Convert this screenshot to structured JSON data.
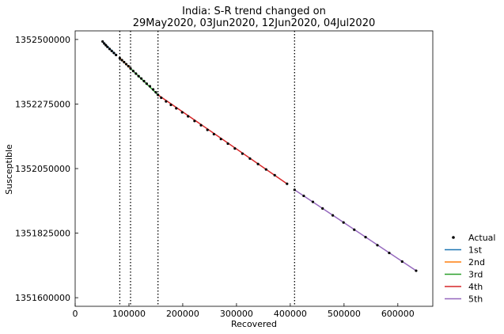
{
  "chart_data": {
    "type": "line",
    "title_line1": "India: S-R trend changed on",
    "title_line2": "29May2020, 03Jun2020, 12Jun2020, 04Jul2020",
    "xlabel": "Recovered",
    "ylabel": "Susceptible",
    "xlim": [
      0,
      665000
    ],
    "ylim": [
      1351570000,
      1352530000
    ],
    "x_ticks": [
      0,
      100000,
      200000,
      300000,
      400000,
      500000,
      600000
    ],
    "x_tick_labels": [
      "0",
      "100000",
      "200000",
      "300000",
      "400000",
      "500000",
      "600000"
    ],
    "y_ticks": [
      1351600000,
      1351825000,
      1352050000,
      1352275000,
      1352500000
    ],
    "y_tick_labels": [
      "1351600000",
      "1351825000",
      "1352050000",
      "1352275000",
      "1352500000"
    ],
    "change_points_x": [
      83000,
      103000,
      154000,
      408000
    ],
    "legend_placement": "lower-right outside",
    "actual": {
      "name": "Actual",
      "color": "#000000",
      "points": [
        [
          51000,
          1352493000
        ],
        [
          54000,
          1352486000
        ],
        [
          57000,
          1352480000
        ],
        [
          60000,
          1352474000
        ],
        [
          64000,
          1352467000
        ],
        [
          68000,
          1352460000
        ],
        [
          72000,
          1352453000
        ],
        [
          76000,
          1352446000
        ],
        [
          83000,
          1352435000
        ],
        [
          87000,
          1352428000
        ],
        [
          91000,
          1352421000
        ],
        [
          95000,
          1352414000
        ],
        [
          99000,
          1352407000
        ],
        [
          103000,
          1352399000
        ],
        [
          108000,
          1352390000
        ],
        [
          113000,
          1352381000
        ],
        [
          118000,
          1352372000
        ],
        [
          123000,
          1352364000
        ],
        [
          128000,
          1352355000
        ],
        [
          133000,
          1352346000
        ],
        [
          139000,
          1352337000
        ],
        [
          145000,
          1352326000
        ],
        [
          150000,
          1352316000
        ],
        [
          154000,
          1352307000
        ],
        [
          160000,
          1352297000
        ],
        [
          169000,
          1352284000
        ],
        [
          178000,
          1352272000
        ],
        [
          188000,
          1352260000
        ],
        [
          199000,
          1352246000
        ],
        [
          210000,
          1352232000
        ],
        [
          222000,
          1352216000
        ],
        [
          234000,
          1352201000
        ],
        [
          246000,
          1352185000
        ],
        [
          258000,
          1352170000
        ],
        [
          271000,
          1352153000
        ],
        [
          284000,
          1352137000
        ],
        [
          297000,
          1352120000
        ],
        [
          311000,
          1352102000
        ],
        [
          325000,
          1352085000
        ],
        [
          340000,
          1352066000
        ],
        [
          355000,
          1352047000
        ],
        [
          371000,
          1352027000
        ],
        [
          394000,
          1351997000
        ],
        [
          408000,
          1351976000
        ],
        [
          425000,
          1351955000
        ],
        [
          442000,
          1351934000
        ],
        [
          460000,
          1351911000
        ],
        [
          479000,
          1351887000
        ],
        [
          499000,
          1351862000
        ],
        [
          519000,
          1351837000
        ],
        [
          540000,
          1351811000
        ],
        [
          562000,
          1351783000
        ],
        [
          584000,
          1351756000
        ],
        [
          608000,
          1351726000
        ],
        [
          634000,
          1351694000
        ]
      ]
    },
    "series": [
      {
        "name": "1st",
        "color": "#1f77b4",
        "x": [
          51000,
          76000
        ],
        "y": [
          1352493000,
          1352446000
        ]
      },
      {
        "name": "2nd",
        "color": "#ff7f0e",
        "x": [
          83000,
          103000
        ],
        "y": [
          1352435000,
          1352399000
        ]
      },
      {
        "name": "3rd",
        "color": "#2ca02c",
        "x": [
          103000,
          154000
        ],
        "y": [
          1352399000,
          1352307000
        ]
      },
      {
        "name": "4th",
        "color": "#d62728",
        "x": [
          154000,
          394000
        ],
        "y": [
          1352307000,
          1351997000
        ]
      },
      {
        "name": "5th",
        "color": "#9467bd",
        "x": [
          408000,
          634000
        ],
        "y": [
          1351976000,
          1351694000
        ]
      }
    ]
  }
}
